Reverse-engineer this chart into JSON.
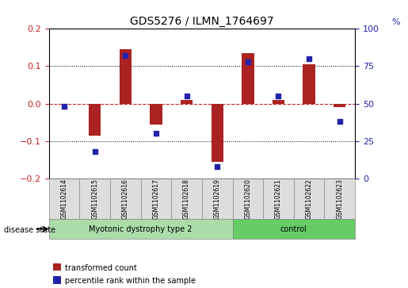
{
  "title": "GDS5276 / ILMN_1764697",
  "samples": [
    "GSM1102614",
    "GSM1102615",
    "GSM1102616",
    "GSM1102617",
    "GSM1102618",
    "GSM1102619",
    "GSM1102620",
    "GSM1102621",
    "GSM1102622",
    "GSM1102623"
  ],
  "bar_values": [
    0.0,
    -0.085,
    0.145,
    -0.055,
    0.01,
    -0.155,
    0.135,
    0.01,
    0.105,
    -0.01
  ],
  "dot_values": [
    48,
    18,
    82,
    30,
    55,
    8,
    78,
    55,
    80,
    38
  ],
  "bar_color": "#aa2222",
  "dot_color": "#2222aa",
  "dashed_color": "#cc2222",
  "ylim_left": [
    -0.2,
    0.2
  ],
  "ylim_right": [
    0,
    100
  ],
  "yticks_left": [
    -0.2,
    -0.1,
    0.0,
    0.1,
    0.2
  ],
  "yticks_right": [
    0,
    25,
    50,
    75,
    100
  ],
  "groups": [
    {
      "label": "Myotonic dystrophy type 2",
      "start": 0,
      "end": 5,
      "color": "#aaddaa"
    },
    {
      "label": "control",
      "start": 6,
      "end": 9,
      "color": "#66cc66"
    }
  ],
  "disease_state_label": "disease state",
  "legend_bar_label": "transformed count",
  "legend_dot_label": "percentile rank within the sample",
  "grid_color": "#000000",
  "bg_color": "#ffffff",
  "plot_bg_color": "#ffffff",
  "tick_label_color_left": "#cc2222",
  "tick_label_color_right": "#2222aa"
}
